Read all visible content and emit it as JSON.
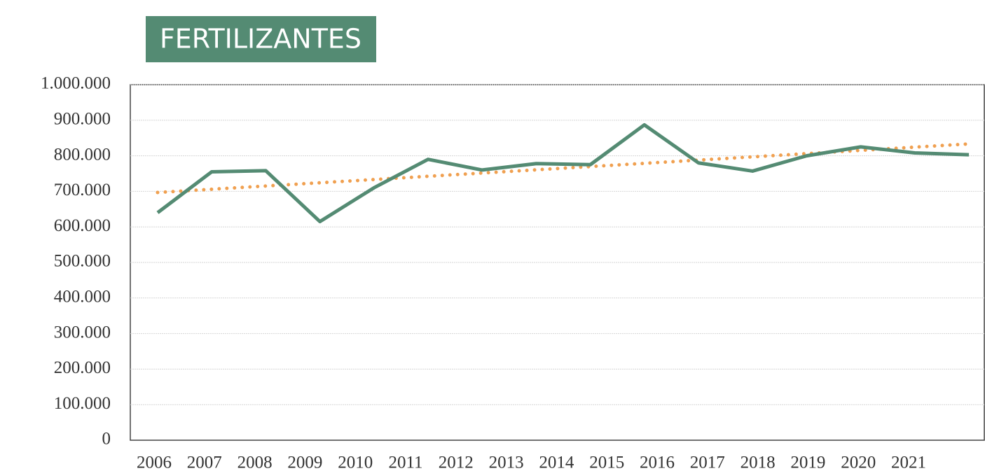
{
  "chart_data": {
    "type": "line",
    "title": "FERTILIZANTES",
    "categories": [
      "2006",
      "2007",
      "2008",
      "2009",
      "2010",
      "2011",
      "2012",
      "2013",
      "2014",
      "2015",
      "2016",
      "2017",
      "2018",
      "2019",
      "2020",
      "2021"
    ],
    "series": [
      {
        "color": "#548b73",
        "values": [
          640000,
          755000,
          758000,
          615000,
          710000,
          790000,
          760000,
          778000,
          775000,
          887000,
          780000,
          757000,
          800000,
          825000,
          808000,
          803000
        ]
      }
    ],
    "trendline": true,
    "trendline_color": "#f0a050",
    "ylim": [
      0,
      1000000
    ],
    "yticks": [
      0,
      {
        "value": 100000,
        "label": "100.000"
      },
      {
        "value": 200000,
        "label": "200.000"
      },
      {
        "value": 300000,
        "label": "300.000"
      },
      {
        "value": 400000,
        "label": "400.000"
      },
      {
        "value": 500000,
        "label": "500.000"
      },
      {
        "value": 600000,
        "label": "600.000"
      },
      {
        "value": 700000,
        "label": "700.000"
      },
      {
        "value": 800000,
        "label": "800.000"
      },
      {
        "value": 900000,
        "label": "900.000"
      },
      {
        "value": 1000000,
        "label": "1.000.000"
      }
    ],
    "grid": true
  }
}
